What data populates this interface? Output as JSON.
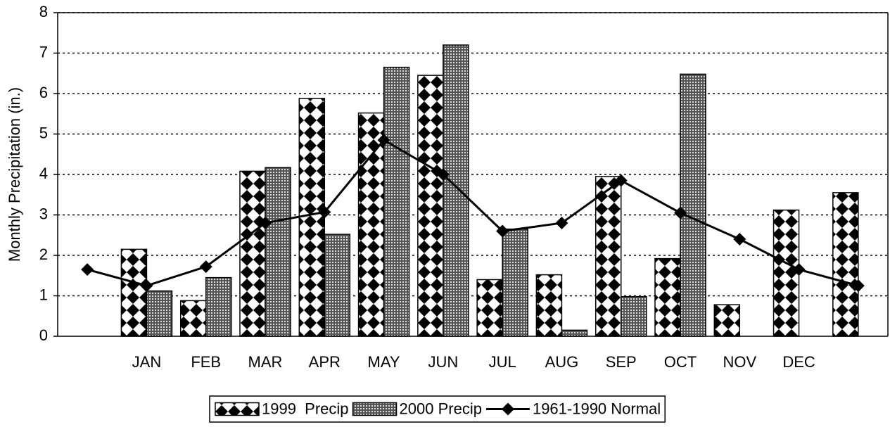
{
  "chart_data": {
    "type": "bar",
    "y_label": "Monthly Precipitation (in.)",
    "categories": [
      null,
      "JAN",
      "FEB",
      "MAR",
      "APR",
      "MAY",
      "JUN",
      "JUL",
      "AUG",
      "SEP",
      "OCT",
      "NOV",
      "DEC",
      null
    ],
    "series": [
      {
        "name": "1999  Precip",
        "type": "bar",
        "color": "#000000",
        "pattern": "diamond",
        "values": [
          null,
          2.15,
          0.88,
          4.08,
          5.88,
          5.52,
          6.45,
          1.4,
          1.52,
          3.95,
          1.92,
          0.78,
          3.12,
          3.55
        ]
      },
      {
        "name": "2000 Precip",
        "type": "bar",
        "color": "#000000",
        "pattern": "dots",
        "values": [
          null,
          1.12,
          1.45,
          4.17,
          2.52,
          6.65,
          7.2,
          2.65,
          0.15,
          0.98,
          6.48,
          null,
          null,
          null
        ]
      },
      {
        "name": "1961-1990 Normal",
        "type": "line",
        "color": "#000000",
        "marker": "diamond",
        "values": [
          1.65,
          1.25,
          1.72,
          2.8,
          3.07,
          4.85,
          4.0,
          2.6,
          2.8,
          3.85,
          3.05,
          2.4,
          1.65,
          1.25
        ]
      }
    ],
    "ylim": [
      0,
      8
    ],
    "yticks": [
      0,
      1,
      2,
      3,
      4,
      5,
      6,
      7,
      8
    ],
    "grid": true,
    "legend": "bottom"
  }
}
